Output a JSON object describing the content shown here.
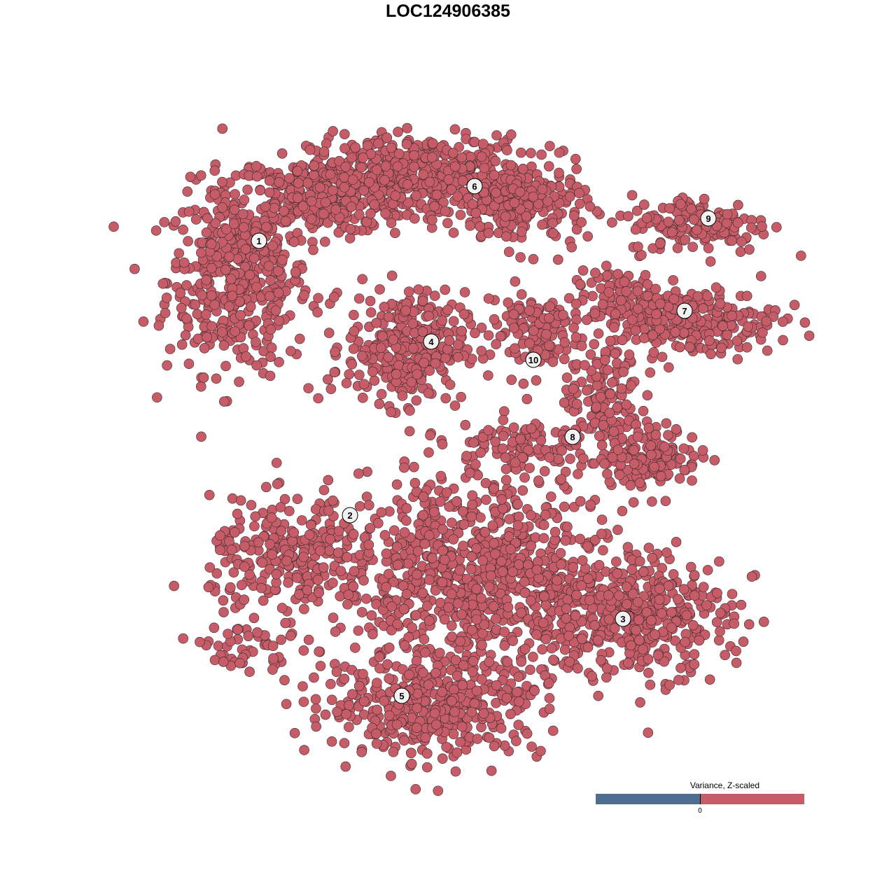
{
  "chart_data": {
    "type": "scatter",
    "title": "LOC124906385",
    "xlabel": "",
    "ylabel": "",
    "grid": false,
    "axes_visible": false,
    "point_color": "#c65c67",
    "point_stroke": "#3a2a2c",
    "legend": {
      "title": "Variance, Z-scaled",
      "placement": "bottom-right",
      "type": "colorbar",
      "low_color": "#4f6d8f",
      "high_color": "#c65c67",
      "ticks": [
        "0"
      ]
    },
    "cluster_labels": [
      {
        "label": "1",
        "x": -6.75,
        "y": 7.4
      },
      {
        "label": "2",
        "x": -3.5,
        "y": -2.4
      },
      {
        "label": "3",
        "x": 6.25,
        "y": -6.1
      },
      {
        "label": "4",
        "x": -0.6,
        "y": 3.8
      },
      {
        "label": "5",
        "x": -1.65,
        "y": -8.85
      },
      {
        "label": "6",
        "x": 0.95,
        "y": 9.35
      },
      {
        "label": "7",
        "x": 8.45,
        "y": 4.9
      },
      {
        "label": "8",
        "x": 4.45,
        "y": 0.4
      },
      {
        "label": "9",
        "x": 9.3,
        "y": 8.2
      },
      {
        "label": "10",
        "x": 3.05,
        "y": 3.15
      }
    ],
    "point_groups": [
      {
        "x": -7.5,
        "y": 6.0,
        "sx": 1.7,
        "sy": 2.2,
        "n": 450
      },
      {
        "x": -4.5,
        "y": 9.0,
        "sx": 2.2,
        "sy": 0.9,
        "n": 300
      },
      {
        "x": -1.0,
        "y": 9.8,
        "sx": 2.6,
        "sy": 0.9,
        "n": 420
      },
      {
        "x": 2.6,
        "y": 8.6,
        "sx": 1.6,
        "sy": 1.0,
        "n": 200
      },
      {
        "x": -1.5,
        "y": 3.6,
        "sx": 1.4,
        "sy": 1.3,
        "n": 320
      },
      {
        "x": 9.0,
        "y": 8.0,
        "sx": 1.7,
        "sy": 0.7,
        "n": 150
      },
      {
        "x": 8.8,
        "y": 4.5,
        "sx": 2.0,
        "sy": 0.8,
        "n": 220
      },
      {
        "x": 6.2,
        "y": 5.3,
        "sx": 1.2,
        "sy": 0.7,
        "n": 90
      },
      {
        "x": 3.0,
        "y": 4.2,
        "sx": 1.2,
        "sy": 1.1,
        "n": 120
      },
      {
        "x": 5.5,
        "y": 1.8,
        "sx": 0.9,
        "sy": 1.4,
        "n": 130
      },
      {
        "x": 7.2,
        "y": -0.3,
        "sx": 1.2,
        "sy": 0.7,
        "n": 150
      },
      {
        "x": 2.6,
        "y": 0.2,
        "sx": 1.8,
        "sy": 0.6,
        "n": 90
      },
      {
        "x": -5.5,
        "y": -4.0,
        "sx": 2.0,
        "sy": 1.4,
        "n": 260
      },
      {
        "x": 1.0,
        "y": -4.5,
        "sx": 3.2,
        "sy": 2.5,
        "n": 850
      },
      {
        "x": 6.5,
        "y": -6.0,
        "sx": 2.4,
        "sy": 1.4,
        "n": 420
      },
      {
        "x": -0.5,
        "y": -9.2,
        "sx": 2.6,
        "sy": 1.2,
        "n": 420
      },
      {
        "x": -7.2,
        "y": -7.2,
        "sx": 1.0,
        "sy": 0.6,
        "n": 45
      }
    ]
  }
}
